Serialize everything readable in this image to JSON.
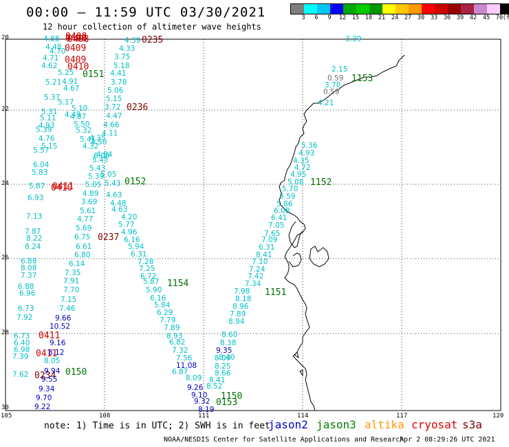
{
  "title": "00:00 – 11:59 UTC 03/30/2021",
  "subtitle": "12 hour collection of altimeter wave heights",
  "colorbar": {
    "colors": [
      "#7f7f7f",
      "#00ffff",
      "#00c8ff",
      "#0000ff",
      "#00aa00",
      "#00cc00",
      "#009900",
      "#ffff00",
      "#ffc800",
      "#ff9900",
      "#ff0000",
      "#cc0000",
      "#990000",
      "#aa2244",
      "#cc88cc",
      "#ffccff",
      "#000000"
    ],
    "labels": [
      "3",
      "6",
      "9",
      "12",
      "15",
      "18",
      "21",
      "24",
      "27",
      "30",
      "33",
      "36",
      "39",
      "42",
      "45",
      "70",
      "(ft)"
    ]
  },
  "lat_labels": [
    "20",
    "22",
    "24",
    "26",
    "28",
    "30"
  ],
  "lon_labels": [
    "105",
    "108",
    "111",
    "114",
    "117",
    "120"
  ],
  "track_colors": {
    "jason2": "#0000c0",
    "jason3": "#007000",
    "altika": "#ff9900",
    "cryosat": "#cc0000",
    "s3a": "#800000",
    "cyan": "#00c0c8",
    "gray": "#707070"
  },
  "time_labels": [
    {
      "text": "0408",
      "c": "cryosat"
    },
    {
      "text": "0408",
      "c": "cryosat"
    },
    {
      "text": "0408",
      "c": "cryosat"
    },
    {
      "text": "0409",
      "c": "cryosat"
    },
    {
      "text": "0409",
      "c": "cryosat"
    },
    {
      "text": "0410",
      "c": "cryosat"
    },
    {
      "text": "0410",
      "c": "cryosat"
    },
    {
      "text": "0411",
      "c": "cryosat"
    },
    {
      "text": "0411",
      "c": "cryosat"
    },
    {
      "text": "0411",
      "c": "cryosat"
    },
    {
      "text": "0234",
      "c": "s3a"
    },
    {
      "text": "0235",
      "c": "s3a"
    },
    {
      "text": "0236",
      "c": "s3a"
    },
    {
      "text": "0237",
      "c": "s3a"
    },
    {
      "text": "0150",
      "c": "jason3"
    },
    {
      "text": "0151",
      "c": "jason3"
    },
    {
      "text": "0152",
      "c": "jason3"
    },
    {
      "text": "1154",
      "c": "jason3"
    },
    {
      "text": "1153",
      "c": "jason3"
    },
    {
      "text": "1152",
      "c": "jason3"
    },
    {
      "text": "1151",
      "c": "jason3"
    },
    {
      "text": "1150",
      "c": "jason3"
    },
    {
      "text": "0153",
      "c": "jason3"
    }
  ],
  "wave_values": [
    {
      "text": "4.88",
      "c": "cyan"
    },
    {
      "text": "4.48",
      "c": "cyan"
    },
    {
      "text": "4.70",
      "c": "cyan"
    },
    {
      "text": "4.71",
      "c": "cyan"
    },
    {
      "text": "4.62",
      "c": "cyan"
    },
    {
      "text": "5.25",
      "c": "cyan"
    },
    {
      "text": "4.91",
      "c": "cyan"
    },
    {
      "text": "4.67",
      "c": "cyan"
    },
    {
      "text": "5.17",
      "c": "cyan"
    },
    {
      "text": "5.10",
      "c": "cyan"
    },
    {
      "text": "4.49",
      "c": "cyan"
    },
    {
      "text": "4.87",
      "c": "cyan"
    },
    {
      "text": "5.50",
      "c": "cyan"
    },
    {
      "text": "5.32",
      "c": "cyan"
    },
    {
      "text": "5.41",
      "c": "cyan"
    },
    {
      "text": "4.32",
      "c": "cyan"
    },
    {
      "text": "4.39",
      "c": "cyan"
    },
    {
      "text": "4.33",
      "c": "cyan"
    },
    {
      "text": "3.75",
      "c": "cyan"
    },
    {
      "text": "5.18",
      "c": "cyan"
    },
    {
      "text": "4.41",
      "c": "cyan"
    },
    {
      "text": "3.78",
      "c": "cyan"
    },
    {
      "text": "5.06",
      "c": "cyan"
    },
    {
      "text": "5.15",
      "c": "cyan"
    },
    {
      "text": "3.72",
      "c": "cyan"
    },
    {
      "text": "4.47",
      "c": "cyan"
    },
    {
      "text": "4.66",
      "c": "cyan"
    },
    {
      "text": "4.11",
      "c": "cyan"
    },
    {
      "text": "5.21",
      "c": "cyan"
    },
    {
      "text": "5.37",
      "c": "cyan"
    },
    {
      "text": "5.31",
      "c": "cyan"
    },
    {
      "text": "5.11",
      "c": "cyan"
    },
    {
      "text": "4.93",
      "c": "cyan"
    },
    {
      "text": "5.39",
      "c": "cyan"
    },
    {
      "text": "4.76",
      "c": "cyan"
    },
    {
      "text": "5.15",
      "c": "cyan"
    },
    {
      "text": "5.57",
      "c": "cyan"
    },
    {
      "text": "6.04",
      "c": "cyan"
    },
    {
      "text": "5.83",
      "c": "cyan"
    },
    {
      "text": "5.87",
      "c": "cyan"
    },
    {
      "text": "6.93",
      "c": "cyan"
    },
    {
      "text": "7.13",
      "c": "cyan"
    },
    {
      "text": "7.87",
      "c": "cyan"
    },
    {
      "text": "8.22",
      "c": "cyan"
    },
    {
      "text": "8.24",
      "c": "cyan"
    },
    {
      "text": "6.75",
      "c": "cyan"
    },
    {
      "text": "6.61",
      "c": "cyan"
    },
    {
      "text": "6.80",
      "c": "cyan"
    },
    {
      "text": "6.14",
      "c": "cyan"
    },
    {
      "text": "7.35",
      "c": "cyan"
    },
    {
      "text": "7.91",
      "c": "cyan"
    },
    {
      "text": "7.70",
      "c": "cyan"
    },
    {
      "text": "7.15",
      "c": "cyan"
    },
    {
      "text": "7.46",
      "c": "cyan"
    },
    {
      "text": "5.69",
      "c": "cyan"
    },
    {
      "text": "5.61",
      "c": "cyan"
    },
    {
      "text": "4.77",
      "c": "cyan"
    },
    {
      "text": "3.69",
      "c": "cyan"
    },
    {
      "text": "4.89",
      "c": "cyan"
    },
    {
      "text": "5.05",
      "c": "cyan"
    },
    {
      "text": "5.39",
      "c": "cyan"
    },
    {
      "text": "5.43",
      "c": "cyan"
    },
    {
      "text": "5.45",
      "c": "cyan"
    },
    {
      "text": "6.08",
      "c": "cyan"
    },
    {
      "text": "4.35",
      "c": "cyan"
    },
    {
      "text": "4.50",
      "c": "cyan"
    },
    {
      "text": "4.84",
      "c": "cyan"
    },
    {
      "text": "5.05",
      "c": "cyan"
    },
    {
      "text": "5.43",
      "c": "cyan"
    },
    {
      "text": "4.63",
      "c": "cyan"
    },
    {
      "text": "4.48",
      "c": "cyan"
    },
    {
      "text": "4.63",
      "c": "cyan"
    },
    {
      "text": "4.20",
      "c": "cyan"
    },
    {
      "text": "5.77",
      "c": "cyan"
    },
    {
      "text": "4.96",
      "c": "cyan"
    },
    {
      "text": "6.16",
      "c": "cyan"
    },
    {
      "text": "5.94",
      "c": "cyan"
    },
    {
      "text": "6.31",
      "c": "cyan"
    },
    {
      "text": "7.28",
      "c": "cyan"
    },
    {
      "text": "7.25",
      "c": "cyan"
    },
    {
      "text": "6.72",
      "c": "cyan"
    },
    {
      "text": "5.87",
      "c": "cyan"
    },
    {
      "text": "5.90",
      "c": "cyan"
    },
    {
      "text": "6.16",
      "c": "cyan"
    },
    {
      "text": "5.84",
      "c": "cyan"
    },
    {
      "text": "6.29",
      "c": "cyan"
    },
    {
      "text": "7.79",
      "c": "cyan"
    },
    {
      "text": "7.89",
      "c": "cyan"
    },
    {
      "text": "8.93",
      "c": "cyan"
    },
    {
      "text": "6.82",
      "c": "cyan"
    },
    {
      "text": "7.32",
      "c": "cyan"
    },
    {
      "text": "7.56",
      "c": "cyan"
    },
    {
      "text": "6.87",
      "c": "cyan"
    },
    {
      "text": "8.09",
      "c": "cyan"
    },
    {
      "text": "6.88",
      "c": "cyan"
    },
    {
      "text": "8.08",
      "c": "cyan"
    },
    {
      "text": "7.37",
      "c": "cyan"
    },
    {
      "text": "6.88",
      "c": "cyan"
    },
    {
      "text": "6.96",
      "c": "cyan"
    },
    {
      "text": "6.73",
      "c": "cyan"
    },
    {
      "text": "7.92",
      "c": "cyan"
    },
    {
      "text": "6.73",
      "c": "cyan"
    },
    {
      "text": "6.40",
      "c": "cyan"
    },
    {
      "text": "6.98",
      "c": "cyan"
    },
    {
      "text": "7.39",
      "c": "cyan"
    },
    {
      "text": "8.05",
      "c": "cyan"
    },
    {
      "text": "7.62",
      "c": "cyan"
    },
    {
      "text": "9.66",
      "c": "jason2"
    },
    {
      "text": "10.52",
      "c": "jason2"
    },
    {
      "text": "9.16",
      "c": "jason2"
    },
    {
      "text": "8.12",
      "c": "jason2"
    },
    {
      "text": "9.94",
      "c": "jason2"
    },
    {
      "text": "9.55",
      "c": "jason2"
    },
    {
      "text": "9.34",
      "c": "jason2"
    },
    {
      "text": "9.70",
      "c": "jason2"
    },
    {
      "text": "9.22",
      "c": "jason2"
    },
    {
      "text": "11.08",
      "c": "jason2"
    },
    {
      "text": "9.26",
      "c": "jason2"
    },
    {
      "text": "9.10",
      "c": "jason2"
    },
    {
      "text": "9.32",
      "c": "jason2"
    },
    {
      "text": "9.35",
      "c": "jason2"
    },
    {
      "text": "8.19",
      "c": "jason2"
    },
    {
      "text": "8.60",
      "c": "cyan"
    },
    {
      "text": "8.38",
      "c": "cyan"
    },
    {
      "text": "8.40",
      "c": "cyan"
    },
    {
      "text": "8.00",
      "c": "cyan"
    },
    {
      "text": "8.25",
      "c": "cyan"
    },
    {
      "text": "8.66",
      "c": "cyan"
    },
    {
      "text": "8.41",
      "c": "cyan"
    },
    {
      "text": "8.52",
      "c": "cyan"
    },
    {
      "text": "8.94",
      "c": "cyan"
    },
    {
      "text": "7.89",
      "c": "cyan"
    },
    {
      "text": "8.96",
      "c": "cyan"
    },
    {
      "text": "8.18",
      "c": "cyan"
    },
    {
      "text": "7.98",
      "c": "cyan"
    },
    {
      "text": "7.34",
      "c": "cyan"
    },
    {
      "text": "7.42",
      "c": "cyan"
    },
    {
      "text": "7.24",
      "c": "cyan"
    },
    {
      "text": "7.10",
      "c": "cyan"
    },
    {
      "text": "8.41",
      "c": "cyan"
    },
    {
      "text": "6.31",
      "c": "cyan"
    },
    {
      "text": "7.09",
      "c": "cyan"
    },
    {
      "text": "7.65",
      "c": "cyan"
    },
    {
      "text": "7.05",
      "c": "cyan"
    },
    {
      "text": "6.41",
      "c": "cyan"
    },
    {
      "text": "6.08",
      "c": "cyan"
    },
    {
      "text": "5.86",
      "c": "cyan"
    },
    {
      "text": "5.59",
      "c": "cyan"
    },
    {
      "text": "5.70",
      "c": "cyan"
    },
    {
      "text": "5.08",
      "c": "cyan"
    },
    {
      "text": "4.95",
      "c": "cyan"
    },
    {
      "text": "4.72",
      "c": "cyan"
    },
    {
      "text": "4.35",
      "c": "cyan"
    },
    {
      "text": "4.93",
      "c": "cyan"
    },
    {
      "text": "5.36",
      "c": "cyan"
    },
    {
      "text": "4.21",
      "c": "cyan"
    },
    {
      "text": "3.70",
      "c": "cyan"
    },
    {
      "text": "2.15",
      "c": "cyan"
    },
    {
      "text": "3.39",
      "c": "cyan"
    },
    {
      "text": "0.59",
      "c": "gray"
    },
    {
      "text": "0.59",
      "c": "gray"
    }
  ],
  "footer": {
    "note": "note: 1) Time is in UTC; 2) SWH is in feet",
    "sats": [
      {
        "name": "jason2",
        "color": "#0000c8"
      },
      {
        "name": "jason3",
        "color": "#008000"
      },
      {
        "name": "altika",
        "color": "#ff9900"
      },
      {
        "name": "cryosat",
        "color": "#dd0000"
      },
      {
        "name": "s3a",
        "color": "#800000"
      }
    ],
    "credit": "NOAA/NESDIS Center for Satellite Applications and Research",
    "timestamp": "Apr  2 08:29:26 UTC 2021"
  }
}
